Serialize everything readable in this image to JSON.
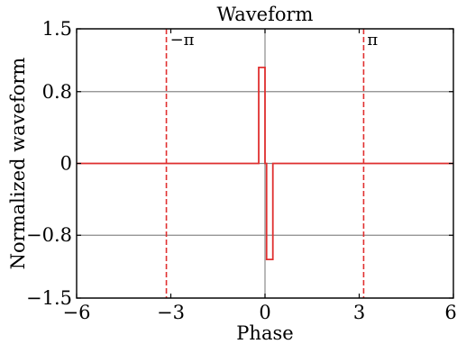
{
  "chart_data": {
    "type": "line",
    "title": "Waveform",
    "xlabel": "Phase",
    "ylabel": "Normalized waveform",
    "xlim": [
      -6,
      6
    ],
    "ylim": [
      -1.5,
      1.5
    ],
    "x_ticks": [
      -6,
      -3,
      0,
      3,
      6
    ],
    "x_tick_labels": [
      "−6",
      "−3",
      "0",
      "3",
      "6"
    ],
    "y_ticks": [
      -1.5,
      -0.8,
      0,
      0.8,
      1.5
    ],
    "y_tick_labels": [
      "−1.5",
      "−0.8",
      "0",
      "0.8",
      "1.5"
    ],
    "grid": "horizontal at y ticks and vertical at x = 0",
    "series": [
      {
        "color": "#e03030",
        "style": "solid",
        "x": [
          -6,
          -0.2,
          -0.2,
          0,
          0,
          0.05,
          0.05,
          0.25,
          0.25,
          6
        ],
        "y": [
          0,
          0,
          1.07,
          1.07,
          0,
          0,
          -1.07,
          -1.07,
          0,
          0
        ]
      }
    ],
    "reference_lines": [
      {
        "x": -3.1416,
        "label": "−π",
        "color": "#e03030",
        "style": "dashed"
      },
      {
        "x": 3.1416,
        "label": "π",
        "color": "#e03030",
        "style": "dashed"
      }
    ]
  }
}
